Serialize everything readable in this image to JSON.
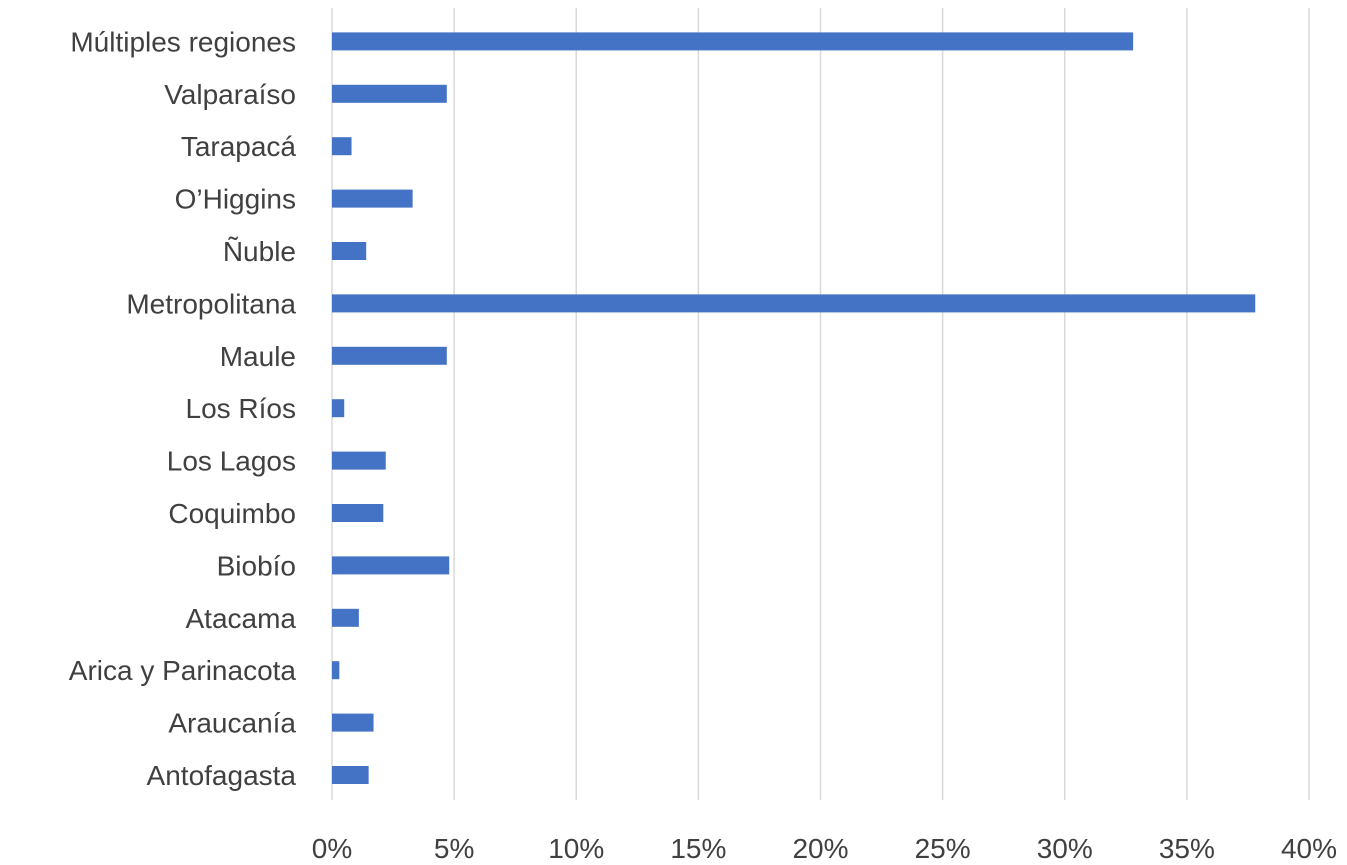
{
  "chart_data": {
    "type": "bar",
    "orientation": "horizontal",
    "categories": [
      "Antofagasta",
      "Araucanía",
      "Arica y Parinacota",
      "Atacama",
      "Biobío",
      "Coquimbo",
      "Los Lagos",
      "Los Ríos",
      "Maule",
      "Metropolitana",
      "Ñuble",
      "O’Higgins",
      "Tarapacá",
      "Valparaíso",
      "Múltiples regiones"
    ],
    "values": [
      0.015,
      0.017,
      0.003,
      0.011,
      0.048,
      0.021,
      0.022,
      0.005,
      0.047,
      0.378,
      0.014,
      0.033,
      0.008,
      0.047,
      0.328
    ],
    "xlim": [
      0,
      0.4
    ],
    "xticks": [
      0,
      0.05,
      0.1,
      0.15,
      0.2,
      0.25,
      0.3,
      0.35,
      0.4
    ],
    "xtick_labels": [
      "0%",
      "5%",
      "10%",
      "15%",
      "20%",
      "25%",
      "30%",
      "35%",
      "40%"
    ],
    "grid": true,
    "legend": "none",
    "bar_color": "#4472c4"
  }
}
